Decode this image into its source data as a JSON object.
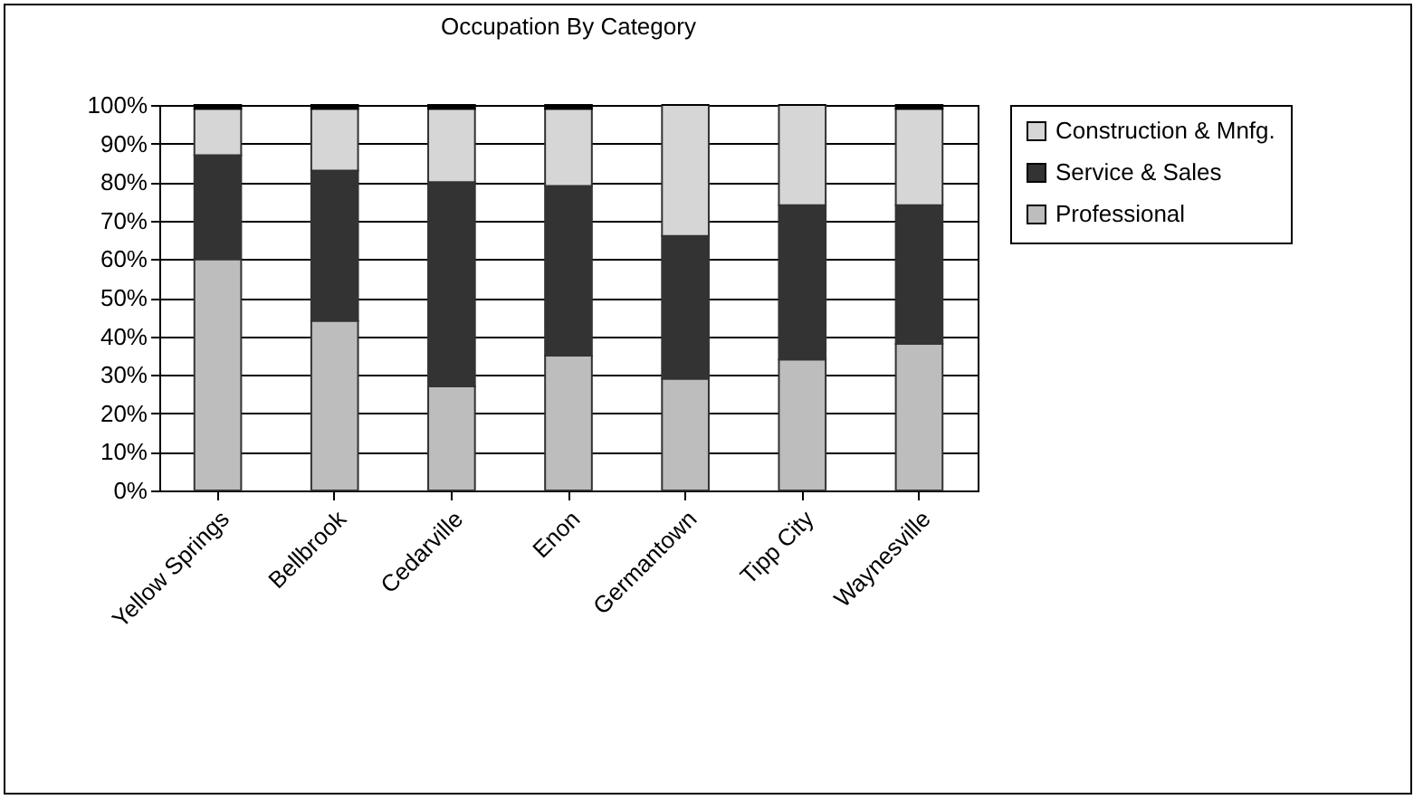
{
  "chart_data": {
    "type": "bar",
    "title": "Occupation By Category",
    "stacked": true,
    "categories": [
      "Yellow Springs",
      "Bellbrook",
      "Cedarville",
      "Enon",
      "Germantown",
      "Tipp City",
      "Waynesville"
    ],
    "series": [
      {
        "name": "Professional",
        "color": "#bdbdbd",
        "values": [
          60,
          44,
          27,
          35,
          29,
          34,
          38
        ]
      },
      {
        "name": "Service & Sales",
        "color": "#333333",
        "values": [
          27,
          39,
          53,
          44,
          37,
          40,
          36
        ]
      },
      {
        "name": "Construction & Mnfg.",
        "color": "#d6d6d6",
        "values": [
          12,
          16,
          19,
          20,
          34,
          26,
          25
        ]
      },
      {
        "color": "#000000",
        "values": [
          1,
          1,
          1,
          1,
          0,
          0,
          1
        ]
      }
    ],
    "ylim": [
      0,
      100
    ],
    "yticks": [
      {
        "value": 0,
        "label": "0%"
      },
      {
        "value": 10,
        "label": "10%"
      },
      {
        "value": 20,
        "label": "20%"
      },
      {
        "value": 30,
        "label": "30%"
      },
      {
        "value": 40,
        "label": "40%"
      },
      {
        "value": 50,
        "label": "50%"
      },
      {
        "value": 60,
        "label": "60%"
      },
      {
        "value": 70,
        "label": "70%"
      },
      {
        "value": 80,
        "label": "80%"
      },
      {
        "value": 90,
        "label": "90%"
      },
      {
        "value": 100,
        "label": "100%"
      }
    ],
    "grid": "y",
    "legend": "right"
  }
}
